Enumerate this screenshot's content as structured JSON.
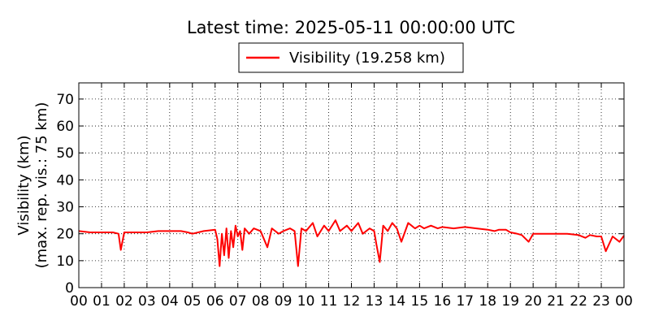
{
  "chart_data": {
    "type": "line",
    "title": "Latest time: 2025-05-11 00:00:00 UTC",
    "ylabel_line1": "Visibility (km)",
    "ylabel_line2": "(max. rep. vis.: 75 km)",
    "xlabel": "",
    "ylim": [
      0,
      76
    ],
    "yticks": [
      0,
      10,
      20,
      30,
      40,
      50,
      60,
      70
    ],
    "xlim": [
      0,
      24
    ],
    "xtick_labels": [
      "00",
      "01",
      "02",
      "03",
      "04",
      "05",
      "06",
      "07",
      "08",
      "09",
      "10",
      "11",
      "12",
      "13",
      "14",
      "15",
      "16",
      "17",
      "18",
      "19",
      "20",
      "21",
      "22",
      "23",
      "00"
    ],
    "grid": true,
    "legend_position": "top-center",
    "series": [
      {
        "name": "Visibility (19.258 km)",
        "color": "#ff0000",
        "x": [
          0,
          0.5,
          1.0,
          1.5,
          1.75,
          1.85,
          2.0,
          2.5,
          3.0,
          3.5,
          4.0,
          4.5,
          4.8,
          5.0,
          5.5,
          6.0,
          6.1,
          6.2,
          6.3,
          6.4,
          6.5,
          6.6,
          6.7,
          6.8,
          6.9,
          7.0,
          7.1,
          7.2,
          7.3,
          7.5,
          7.7,
          8.0,
          8.3,
          8.5,
          8.8,
          9.0,
          9.3,
          9.5,
          9.65,
          9.8,
          10.0,
          10.3,
          10.5,
          10.8,
          11.0,
          11.3,
          11.5,
          11.8,
          12.0,
          12.3,
          12.5,
          12.8,
          13.0,
          13.1,
          13.25,
          13.4,
          13.6,
          13.8,
          14.0,
          14.2,
          14.5,
          14.8,
          15.0,
          15.2,
          15.5,
          15.8,
          16.0,
          16.5,
          17.0,
          17.5,
          18.0,
          18.3,
          18.5,
          18.8,
          19.0,
          19.3,
          19.5,
          19.8,
          20.0,
          20.5,
          21.0,
          21.5,
          22.0,
          22.3,
          22.5,
          22.8,
          23.0,
          23.2,
          23.5,
          23.8,
          24.0
        ],
        "values": [
          21,
          20.5,
          20.5,
          20.5,
          20,
          14,
          20.5,
          20.5,
          20.5,
          21,
          21,
          21,
          20.5,
          20,
          21,
          21.5,
          18,
          8,
          20,
          12,
          22,
          11,
          21,
          15,
          23,
          19,
          21,
          14,
          22,
          20,
          22,
          21,
          15,
          22,
          20,
          21,
          22,
          21,
          8,
          22,
          21,
          24,
          19,
          23,
          21,
          25,
          21,
          23,
          21,
          24,
          20,
          22,
          21,
          16,
          9.5,
          23,
          21,
          24,
          22,
          17,
          24,
          22,
          23,
          22,
          23,
          22,
          22.5,
          22,
          22.5,
          22,
          21.5,
          21,
          21.5,
          21.5,
          20.5,
          20,
          19.5,
          17,
          20,
          20,
          20,
          20,
          19.5,
          18.5,
          19.5,
          19,
          19,
          13.5,
          19,
          17,
          19.3
        ]
      }
    ]
  }
}
